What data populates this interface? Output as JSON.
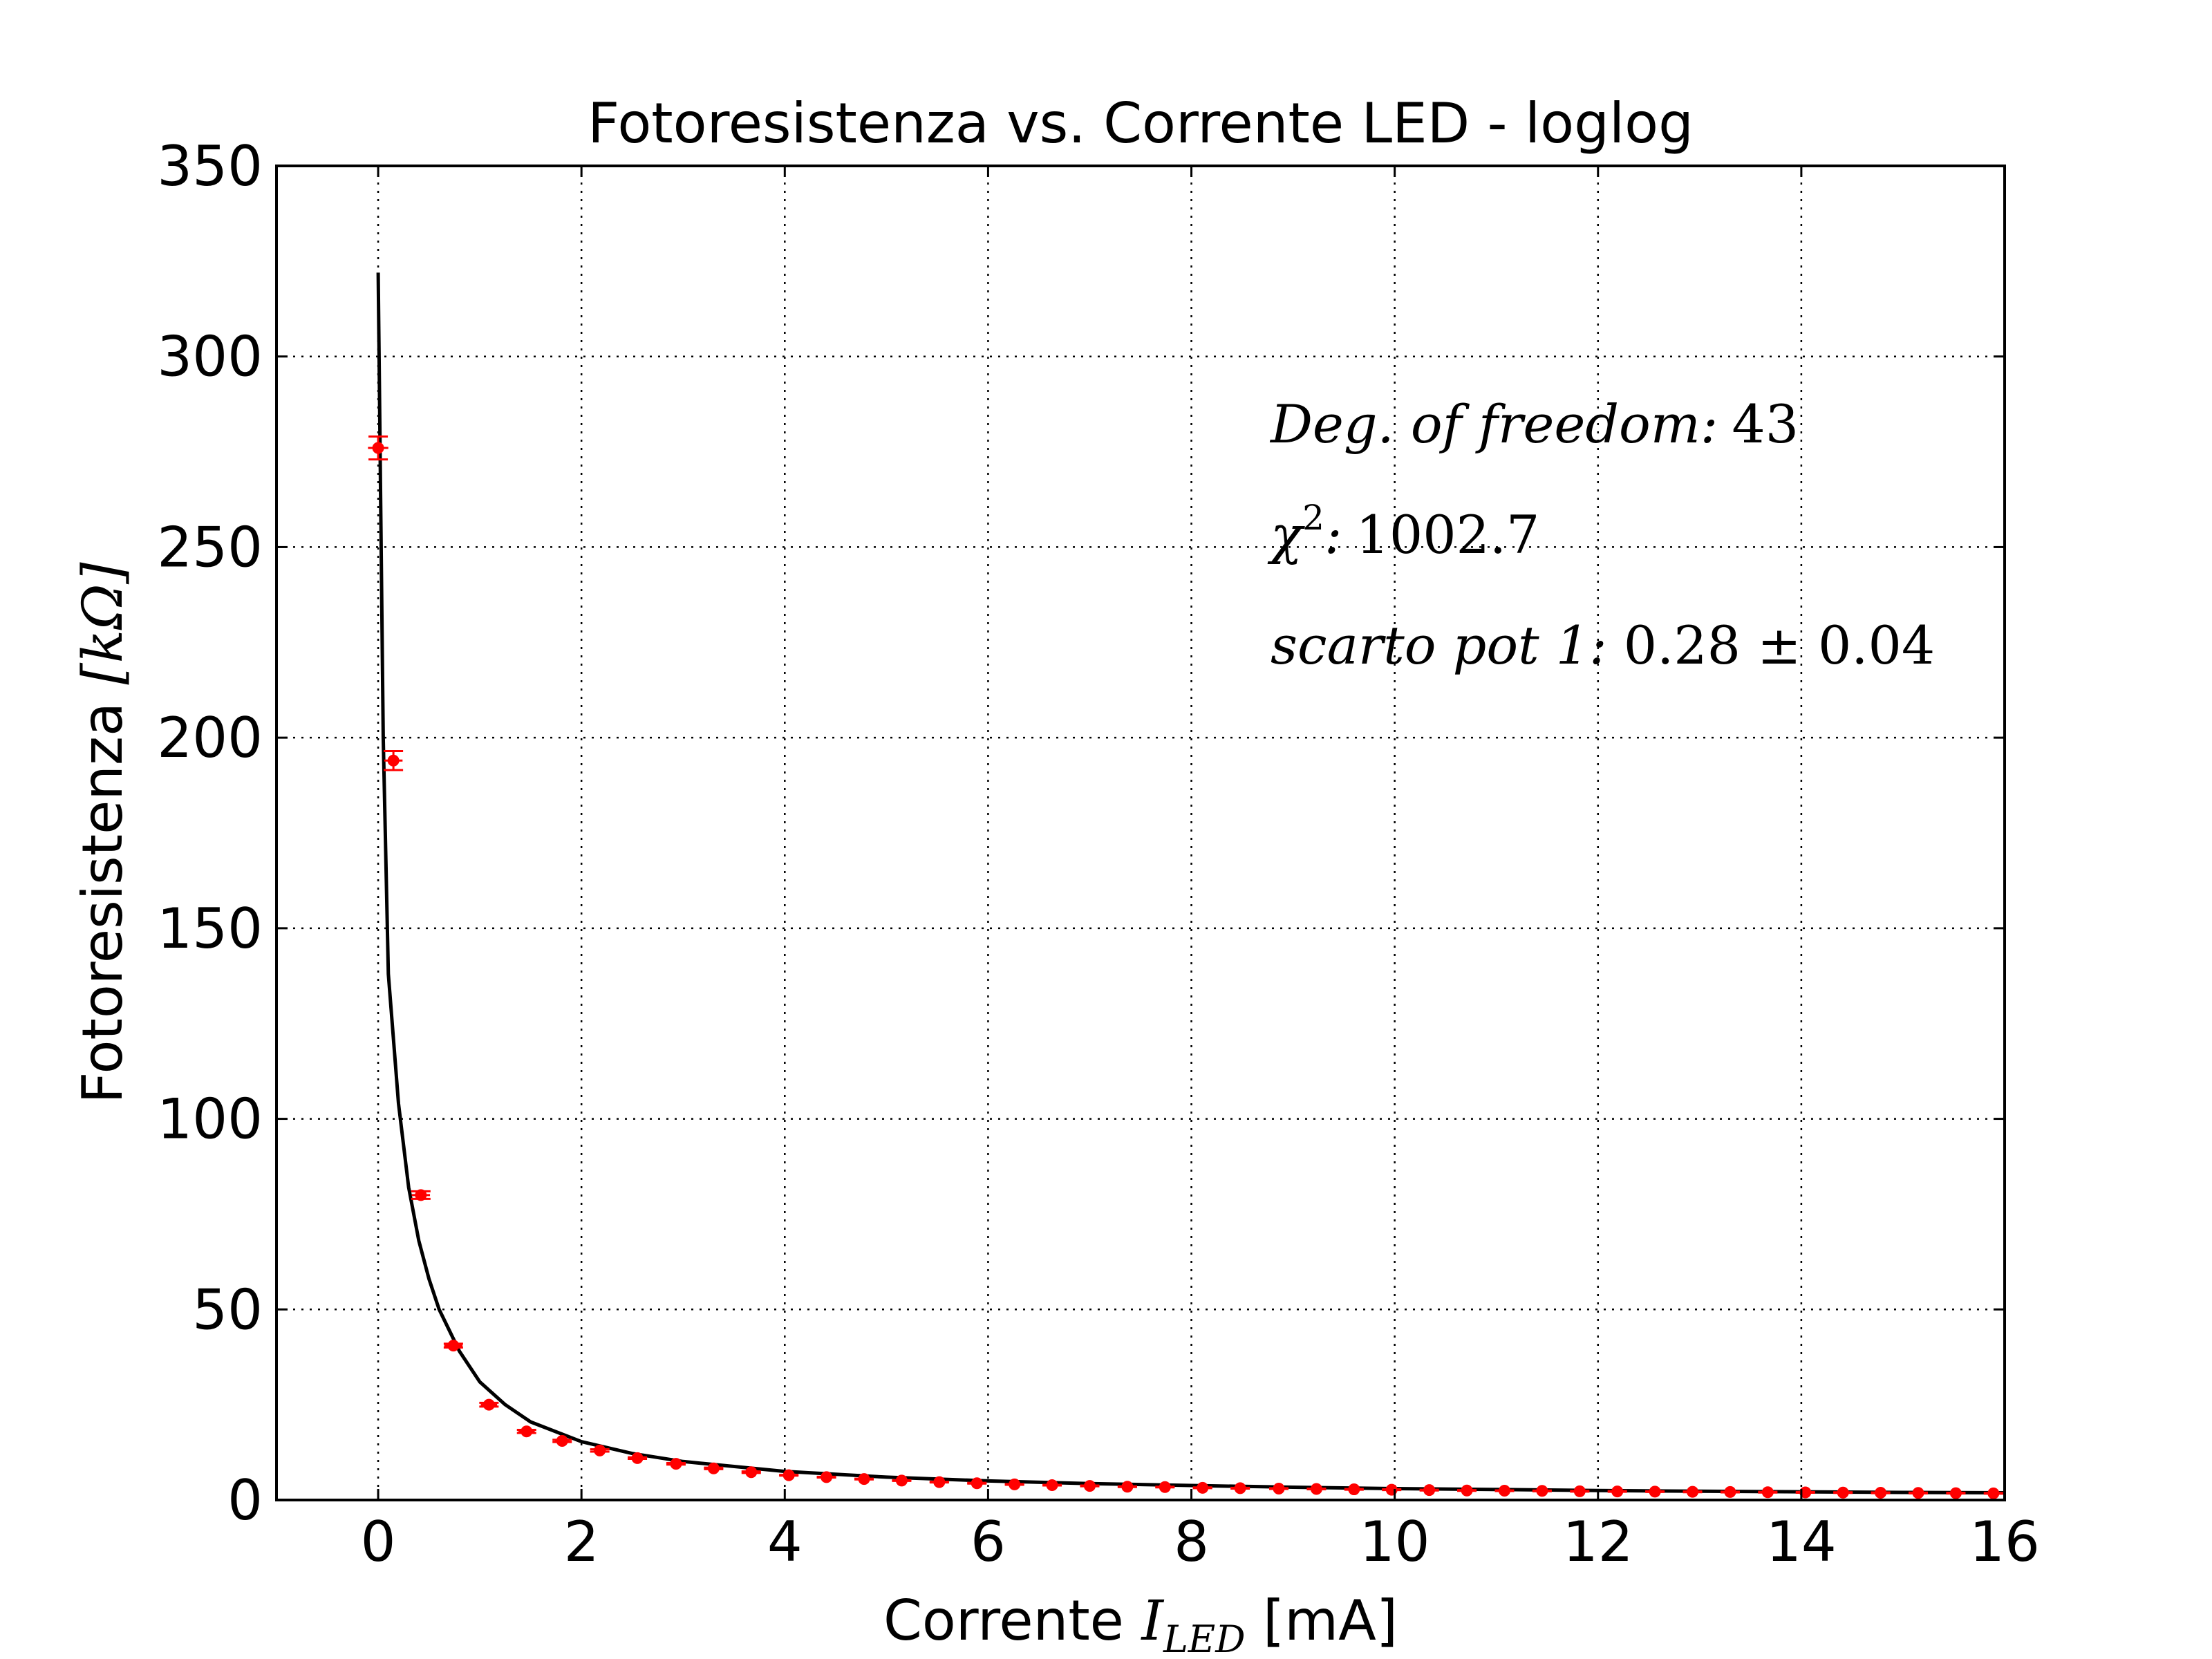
{
  "chart_data": {
    "type": "scatter",
    "title": "Fotoresistenza vs. Corrente LED - loglog",
    "xlabel": {
      "prefix": "Corrente ",
      "symbol": "I",
      "subscript": "LED",
      "unit": " [mA]"
    },
    "ylabel": {
      "prefix": "Fotoresistenza ",
      "unit": "[kΩ]"
    },
    "xlim": [
      -1,
      16
    ],
    "ylim": [
      0,
      350
    ],
    "xticks": [
      0,
      2,
      4,
      6,
      8,
      10,
      12,
      14,
      16
    ],
    "yticks": [
      0,
      50,
      100,
      150,
      200,
      250,
      300,
      350
    ],
    "grid": true,
    "annotations": [
      {
        "label": "Deg. of freedom:",
        "value": "43"
      },
      {
        "label": ":",
        "symbol": "χ",
        "superscript": "2",
        "value": "1002.7"
      },
      {
        "label": "scarto pot 1:",
        "value": "0.28 ± 0.04"
      }
    ],
    "series": [
      {
        "kind": "errorbar",
        "color": "#ff0000",
        "points": [
          {
            "x": 0.0,
            "y": 276.0,
            "yerr": 3.0,
            "xerr": 0.1
          },
          {
            "x": 0.15,
            "y": 194.0,
            "yerr": 2.5,
            "xerr": 0.09
          },
          {
            "x": 0.42,
            "y": 80.0,
            "yerr": 1.0,
            "xerr": 0.09
          },
          {
            "x": 0.74,
            "y": 40.5,
            "yerr": 0.5,
            "xerr": 0.09
          },
          {
            "x": 1.09,
            "y": 25.0,
            "yerr": 0.5,
            "xerr": 0.08
          },
          {
            "x": 1.46,
            "y": 18.0,
            "yerr": 0.4,
            "xerr": 0.08
          },
          {
            "x": 1.81,
            "y": 15.5,
            "yerr": 0.3,
            "xerr": 0.07
          },
          {
            "x": 2.18,
            "y": 13.0,
            "yerr": 0.3,
            "xerr": 0.06
          },
          {
            "x": 2.55,
            "y": 11.0,
            "yerr": 0.2,
            "xerr": 0.05
          },
          {
            "x": 2.93,
            "y": 9.5,
            "yerr": 0.2,
            "xerr": 0.05
          },
          {
            "x": 3.3,
            "y": 8.3,
            "yerr": 0.2,
            "xerr": 0.05
          },
          {
            "x": 3.67,
            "y": 7.3,
            "yerr": 0.2,
            "xerr": 0.05
          },
          {
            "x": 4.04,
            "y": 6.5,
            "yerr": 0.1,
            "xerr": 0.05
          },
          {
            "x": 4.41,
            "y": 6.0,
            "yerr": 0.1,
            "xerr": 0.05
          },
          {
            "x": 4.78,
            "y": 5.5,
            "yerr": 0.1,
            "xerr": 0.05
          },
          {
            "x": 5.15,
            "y": 5.1,
            "yerr": 0.1,
            "xerr": 0.05
          },
          {
            "x": 5.52,
            "y": 4.7,
            "yerr": 0.1,
            "xerr": 0.05
          },
          {
            "x": 5.89,
            "y": 4.4,
            "yerr": 0.1,
            "xerr": 0.05
          },
          {
            "x": 6.26,
            "y": 4.1,
            "yerr": 0.1,
            "xerr": 0.05
          },
          {
            "x": 6.63,
            "y": 3.9,
            "yerr": 0.1,
            "xerr": 0.05
          },
          {
            "x": 7.0,
            "y": 3.7,
            "yerr": 0.1,
            "xerr": 0.05
          },
          {
            "x": 7.37,
            "y": 3.5,
            "yerr": 0.1,
            "xerr": 0.05
          },
          {
            "x": 7.74,
            "y": 3.4,
            "yerr": 0.1,
            "xerr": 0.05
          },
          {
            "x": 8.11,
            "y": 3.2,
            "yerr": 0.1,
            "xerr": 0.05
          },
          {
            "x": 8.48,
            "y": 3.1,
            "yerr": 0.1,
            "xerr": 0.05
          },
          {
            "x": 8.86,
            "y": 3.0,
            "yerr": 0.1,
            "xerr": 0.05
          },
          {
            "x": 9.23,
            "y": 2.9,
            "yerr": 0.1,
            "xerr": 0.05
          },
          {
            "x": 9.6,
            "y": 2.8,
            "yerr": 0.1,
            "xerr": 0.05
          },
          {
            "x": 9.97,
            "y": 2.7,
            "yerr": 0.1,
            "xerr": 0.05
          },
          {
            "x": 10.34,
            "y": 2.6,
            "yerr": 0.1,
            "xerr": 0.05
          },
          {
            "x": 10.71,
            "y": 2.5,
            "yerr": 0.1,
            "xerr": 0.05
          },
          {
            "x": 11.08,
            "y": 2.45,
            "yerr": 0.1,
            "xerr": 0.05
          },
          {
            "x": 11.45,
            "y": 2.4,
            "yerr": 0.1,
            "xerr": 0.05
          },
          {
            "x": 11.82,
            "y": 2.3,
            "yerr": 0.1,
            "xerr": 0.05
          },
          {
            "x": 12.19,
            "y": 2.25,
            "yerr": 0.1,
            "xerr": 0.05
          },
          {
            "x": 12.56,
            "y": 2.2,
            "yerr": 0.1,
            "xerr": 0.05
          },
          {
            "x": 12.93,
            "y": 2.15,
            "yerr": 0.1,
            "xerr": 0.05
          },
          {
            "x": 13.3,
            "y": 2.1,
            "yerr": 0.1,
            "xerr": 0.05
          },
          {
            "x": 13.67,
            "y": 2.05,
            "yerr": 0.1,
            "xerr": 0.05
          },
          {
            "x": 14.04,
            "y": 2.0,
            "yerr": 0.1,
            "xerr": 0.05
          },
          {
            "x": 14.41,
            "y": 1.95,
            "yerr": 0.1,
            "xerr": 0.05
          },
          {
            "x": 14.78,
            "y": 1.9,
            "yerr": 0.1,
            "xerr": 0.05
          },
          {
            "x": 15.15,
            "y": 1.85,
            "yerr": 0.1,
            "xerr": 0.05
          },
          {
            "x": 15.52,
            "y": 1.8,
            "yerr": 0.1,
            "xerr": 0.05
          },
          {
            "x": 15.89,
            "y": 1.75,
            "yerr": 0.1,
            "xerr": 0.05
          }
        ]
      },
      {
        "kind": "line",
        "color": "#000000",
        "points": [
          {
            "x": 0.0,
            "y": 322
          },
          {
            "x": 0.05,
            "y": 200
          },
          {
            "x": 0.1,
            "y": 138
          },
          {
            "x": 0.2,
            "y": 104
          },
          {
            "x": 0.3,
            "y": 82
          },
          {
            "x": 0.4,
            "y": 68
          },
          {
            "x": 0.5,
            "y": 58
          },
          {
            "x": 0.6,
            "y": 50
          },
          {
            "x": 0.8,
            "y": 39
          },
          {
            "x": 1.0,
            "y": 31
          },
          {
            "x": 1.25,
            "y": 25
          },
          {
            "x": 1.5,
            "y": 20.5
          },
          {
            "x": 2.0,
            "y": 15.3
          },
          {
            "x": 2.5,
            "y": 12.2
          },
          {
            "x": 3.0,
            "y": 10.1
          },
          {
            "x": 4.0,
            "y": 7.5
          },
          {
            "x": 5.0,
            "y": 6.0
          },
          {
            "x": 6.0,
            "y": 5.0
          },
          {
            "x": 7.0,
            "y": 4.3
          },
          {
            "x": 8.0,
            "y": 3.8
          },
          {
            "x": 9.0,
            "y": 3.35
          },
          {
            "x": 10.0,
            "y": 3.0
          },
          {
            "x": 11.0,
            "y": 2.75
          },
          {
            "x": 12.0,
            "y": 2.5
          },
          {
            "x": 13.0,
            "y": 2.3
          },
          {
            "x": 14.0,
            "y": 2.15
          },
          {
            "x": 15.0,
            "y": 2.0
          },
          {
            "x": 16.0,
            "y": 1.9
          }
        ]
      }
    ]
  }
}
